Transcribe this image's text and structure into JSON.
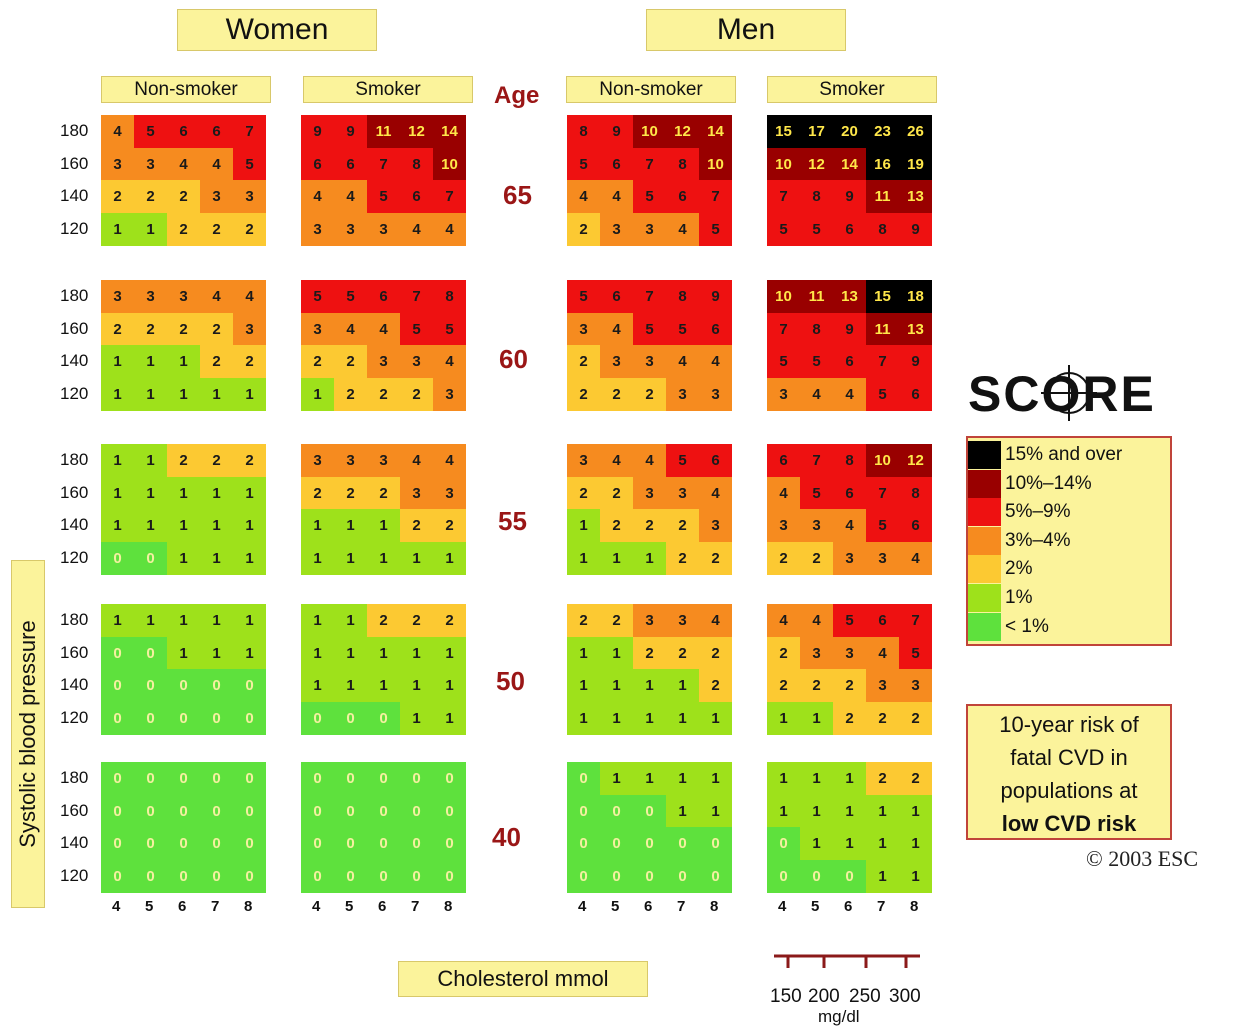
{
  "headers": {
    "women": "Women",
    "men": "Men",
    "non_smoker": "Non-smoker",
    "smoker": "Smoker",
    "age": "Age"
  },
  "axis": {
    "ylabel": "Systolic blood pressure",
    "xlabel": "Cholesterol mmol",
    "scale_label": "mg/dl"
  },
  "logo": {
    "text": "SCORE"
  },
  "legend": {
    "items": [
      {
        "label": "15% and over",
        "color": "#000000"
      },
      {
        "label": "10%–14%",
        "color": "#990000"
      },
      {
        "label": "5%–9%",
        "color": "#ee1111"
      },
      {
        "label": "3%–4%",
        "color": "#f68b1f"
      },
      {
        "label": "2%",
        "color": "#fcc932"
      },
      {
        "label": "1%",
        "color": "#9ee11b"
      },
      {
        "label": "< 1%",
        "color": "#5ee13d"
      }
    ]
  },
  "caption": {
    "line1": "10-year risk of",
    "line2": "fatal CVD in",
    "line3": "populations at",
    "line4": "low CVD risk"
  },
  "copyright": "© 2003 ESC",
  "chart_data": {
    "type": "heatmap",
    "ages": [
      "65",
      "60",
      "55",
      "50",
      "40"
    ],
    "systolic_bp": [
      "180",
      "160",
      "140",
      "120"
    ],
    "cholesterol_mmol": [
      "4",
      "5",
      "6",
      "7",
      "8"
    ],
    "cholesterol_mgdl": [
      "150",
      "200",
      "250",
      "300"
    ],
    "panels": [
      {
        "sex": "Women",
        "smoking": "Non-smoker",
        "values": [
          [
            [
              4,
              5,
              6,
              6,
              7
            ],
            [
              3,
              3,
              4,
              4,
              5
            ],
            [
              2,
              2,
              2,
              3,
              3
            ],
            [
              1,
              1,
              2,
              2,
              2
            ]
          ],
          [
            [
              3,
              3,
              3,
              4,
              4
            ],
            [
              2,
              2,
              2,
              2,
              3
            ],
            [
              1,
              1,
              1,
              2,
              2
            ],
            [
              1,
              1,
              1,
              1,
              1
            ]
          ],
          [
            [
              1,
              1,
              2,
              2,
              2
            ],
            [
              1,
              1,
              1,
              1,
              1
            ],
            [
              1,
              1,
              1,
              1,
              1
            ],
            [
              0,
              0,
              1,
              1,
              1
            ]
          ],
          [
            [
              1,
              1,
              1,
              1,
              1
            ],
            [
              0,
              0,
              1,
              1,
              1
            ],
            [
              0,
              0,
              0,
              0,
              0
            ],
            [
              0,
              0,
              0,
              0,
              0
            ]
          ],
          [
            [
              0,
              0,
              0,
              0,
              0
            ],
            [
              0,
              0,
              0,
              0,
              0
            ],
            [
              0,
              0,
              0,
              0,
              0
            ],
            [
              0,
              0,
              0,
              0,
              0
            ]
          ]
        ]
      },
      {
        "sex": "Women",
        "smoking": "Smoker",
        "values": [
          [
            [
              9,
              9,
              11,
              12,
              14
            ],
            [
              6,
              6,
              7,
              8,
              10
            ],
            [
              4,
              4,
              5,
              6,
              7
            ],
            [
              3,
              3,
              3,
              4,
              4
            ]
          ],
          [
            [
              5,
              5,
              6,
              7,
              8
            ],
            [
              3,
              4,
              4,
              5,
              5
            ],
            [
              2,
              2,
              3,
              3,
              4
            ],
            [
              1,
              2,
              2,
              2,
              3
            ]
          ],
          [
            [
              3,
              3,
              3,
              4,
              4
            ],
            [
              2,
              2,
              2,
              3,
              3
            ],
            [
              1,
              1,
              1,
              2,
              2
            ],
            [
              1,
              1,
              1,
              1,
              1
            ]
          ],
          [
            [
              1,
              1,
              2,
              2,
              2
            ],
            [
              1,
              1,
              1,
              1,
              1
            ],
            [
              1,
              1,
              1,
              1,
              1
            ],
            [
              0,
              0,
              0,
              1,
              1
            ]
          ],
          [
            [
              0,
              0,
              0,
              0,
              0
            ],
            [
              0,
              0,
              0,
              0,
              0
            ],
            [
              0,
              0,
              0,
              0,
              0
            ],
            [
              0,
              0,
              0,
              0,
              0
            ]
          ]
        ]
      },
      {
        "sex": "Men",
        "smoking": "Non-smoker",
        "values": [
          [
            [
              8,
              9,
              10,
              12,
              14
            ],
            [
              5,
              6,
              7,
              8,
              10
            ],
            [
              4,
              4,
              5,
              6,
              7
            ],
            [
              2,
              3,
              3,
              4,
              5
            ]
          ],
          [
            [
              5,
              6,
              7,
              8,
              9
            ],
            [
              3,
              4,
              5,
              5,
              6
            ],
            [
              2,
              3,
              3,
              4,
              4
            ],
            [
              2,
              2,
              2,
              3,
              3
            ]
          ],
          [
            [
              3,
              4,
              4,
              5,
              6
            ],
            [
              2,
              2,
              3,
              3,
              4
            ],
            [
              1,
              2,
              2,
              2,
              3
            ],
            [
              1,
              1,
              1,
              2,
              2
            ]
          ],
          [
            [
              2,
              2,
              3,
              3,
              4
            ],
            [
              1,
              1,
              2,
              2,
              2
            ],
            [
              1,
              1,
              1,
              1,
              2
            ],
            [
              1,
              1,
              1,
              1,
              1
            ]
          ],
          [
            [
              0,
              1,
              1,
              1,
              1
            ],
            [
              0,
              0,
              0,
              1,
              1
            ],
            [
              0,
              0,
              0,
              0,
              0
            ],
            [
              0,
              0,
              0,
              0,
              0
            ]
          ]
        ]
      },
      {
        "sex": "Men",
        "smoking": "Smoker",
        "values": [
          [
            [
              15,
              17,
              20,
              23,
              26
            ],
            [
              10,
              12,
              14,
              16,
              19
            ],
            [
              7,
              8,
              9,
              11,
              13
            ],
            [
              5,
              5,
              6,
              8,
              9
            ]
          ],
          [
            [
              10,
              11,
              13,
              15,
              18
            ],
            [
              7,
              8,
              9,
              11,
              13
            ],
            [
              5,
              5,
              6,
              7,
              9
            ],
            [
              3,
              4,
              4,
              5,
              6
            ]
          ],
          [
            [
              6,
              7,
              8,
              10,
              12
            ],
            [
              4,
              5,
              6,
              7,
              8
            ],
            [
              3,
              3,
              4,
              5,
              6
            ],
            [
              2,
              2,
              3,
              3,
              4
            ]
          ],
          [
            [
              4,
              4,
              5,
              6,
              7
            ],
            [
              2,
              3,
              3,
              4,
              5
            ],
            [
              2,
              2,
              2,
              3,
              3
            ],
            [
              1,
              1,
              2,
              2,
              2
            ]
          ],
          [
            [
              1,
              1,
              1,
              2,
              2
            ],
            [
              1,
              1,
              1,
              1,
              1
            ],
            [
              0,
              1,
              1,
              1,
              1
            ],
            [
              0,
              0,
              0,
              1,
              1
            ]
          ]
        ]
      }
    ]
  }
}
